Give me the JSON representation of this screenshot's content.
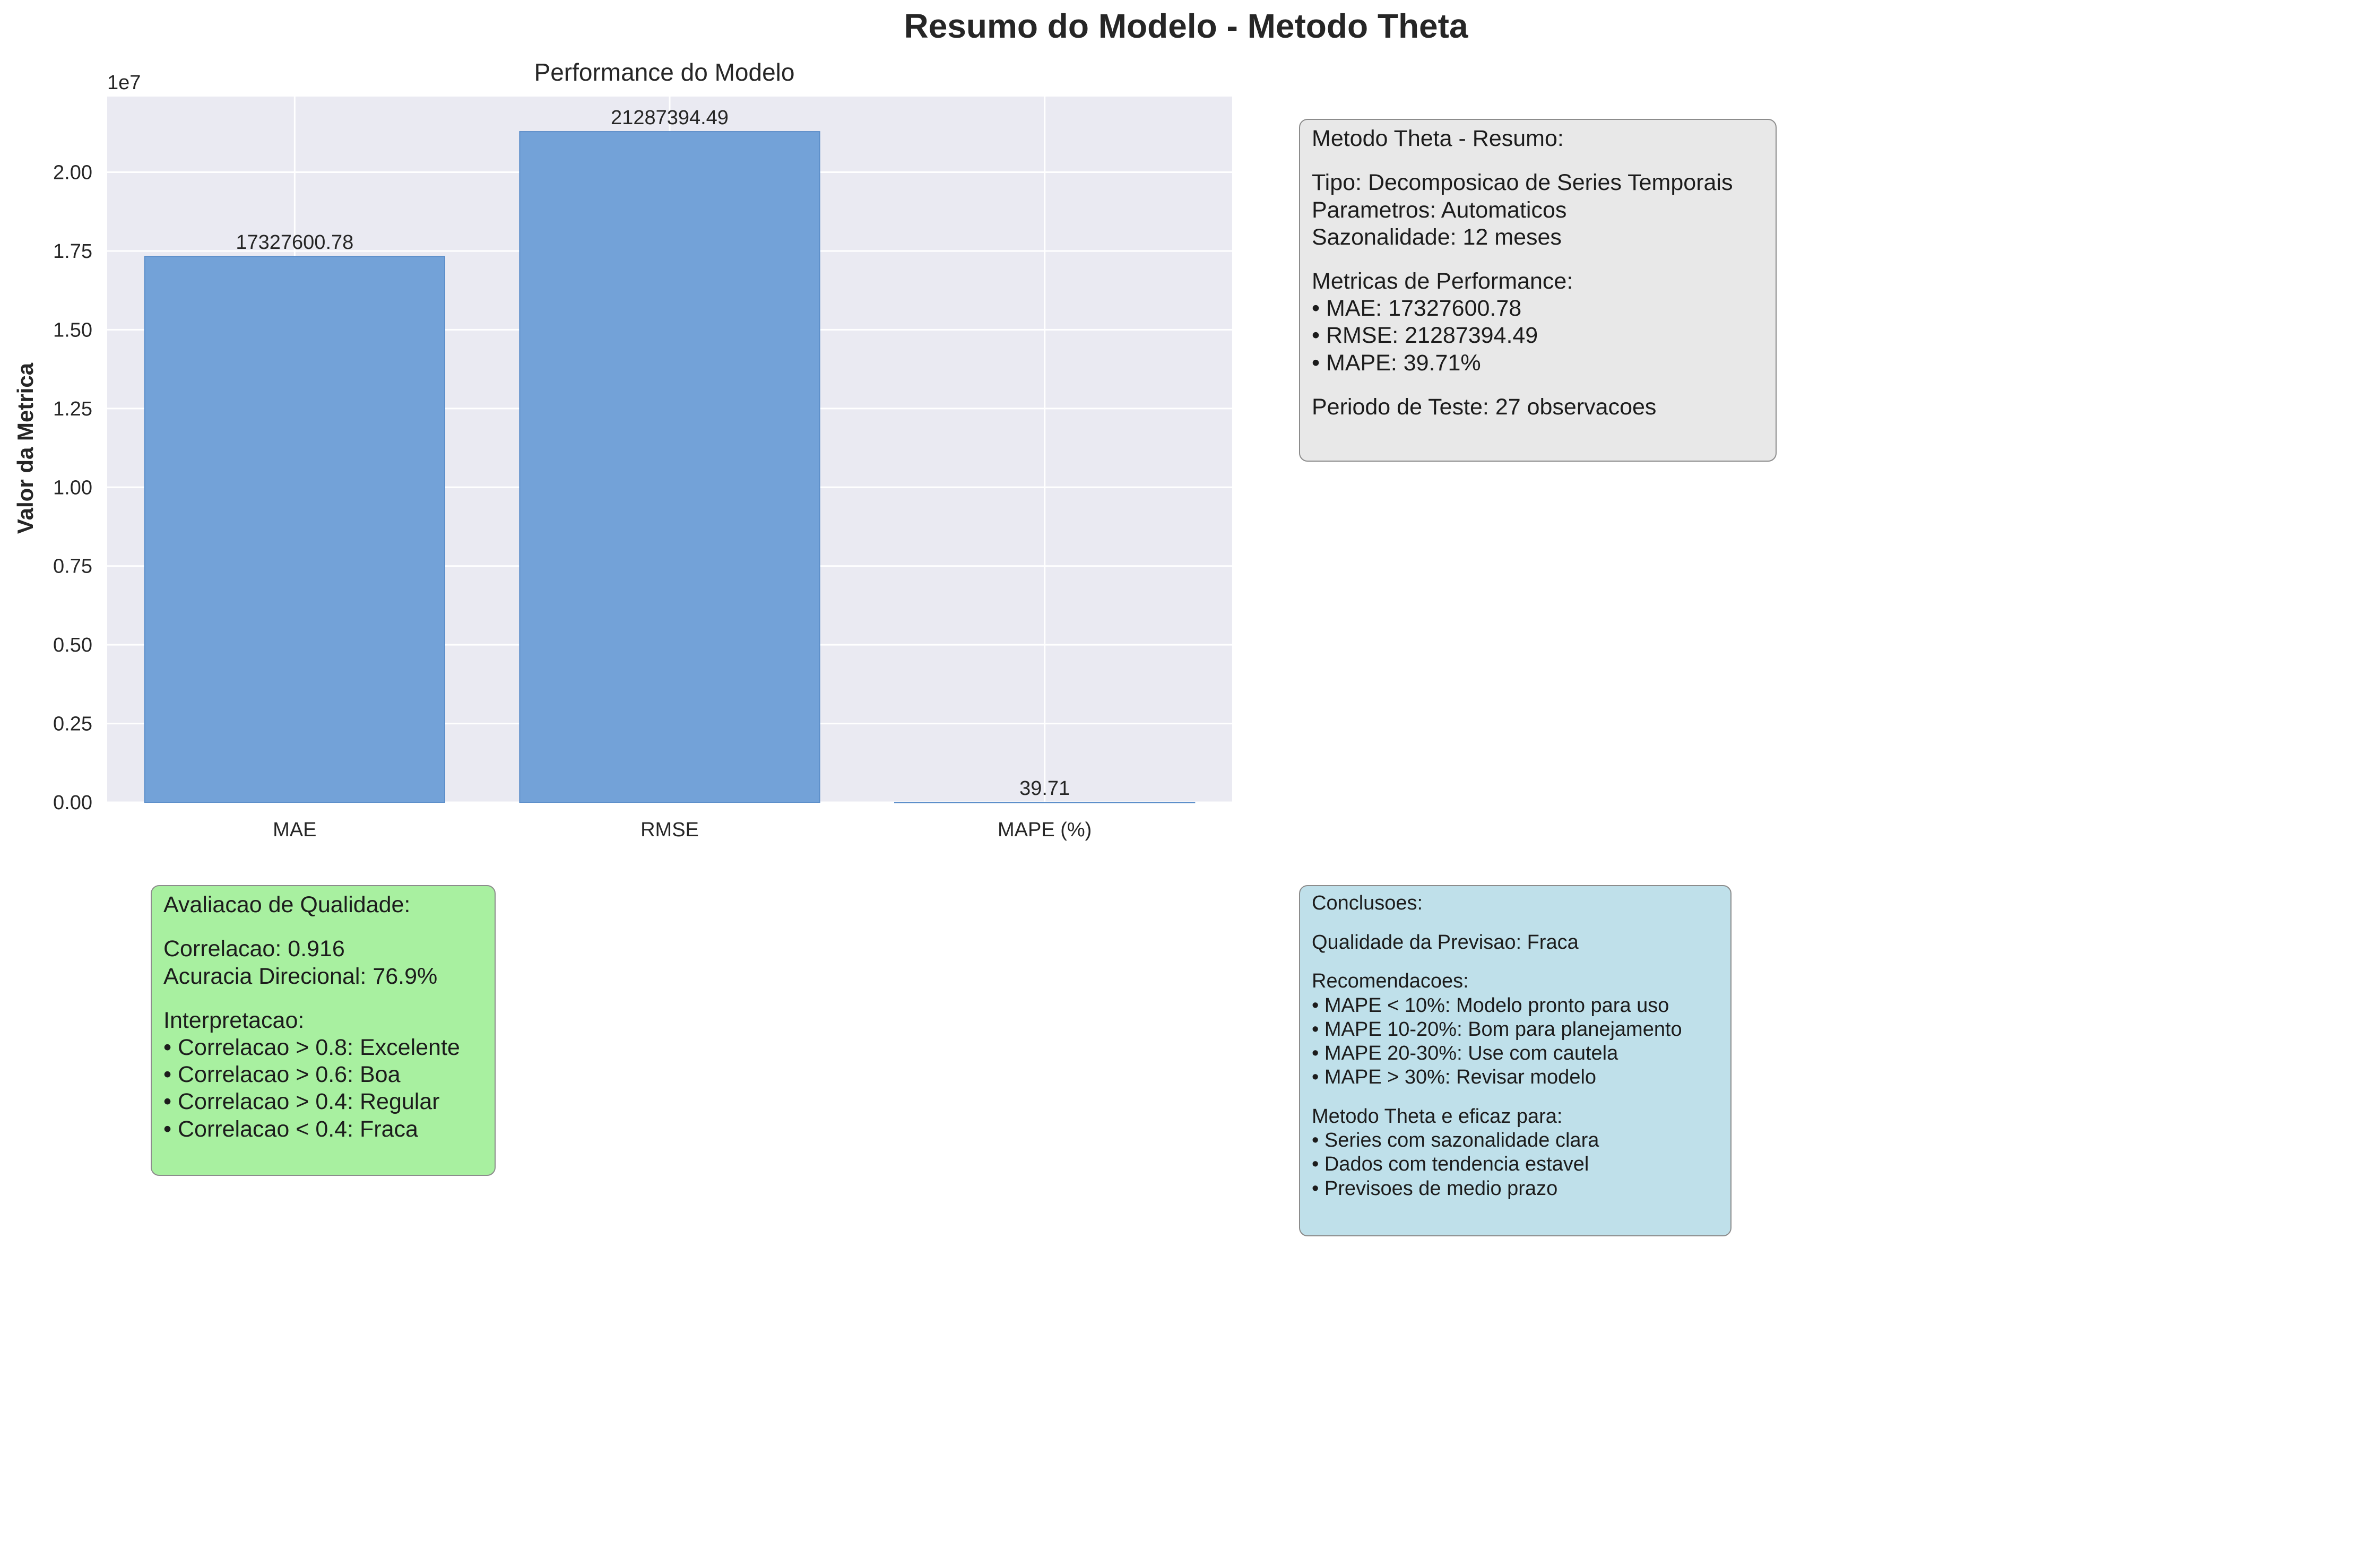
{
  "figure": {
    "title": "Resumo do Modelo - Metodo Theta"
  },
  "chart_data": {
    "type": "bar",
    "title": "Performance do Modelo",
    "xlabel": "",
    "ylabel": "Valor da Metrica",
    "categories": [
      "MAE",
      "RMSE",
      "MAPE (%)"
    ],
    "values": [
      17327600.78,
      21287394.49,
      39.71
    ],
    "data_labels": [
      "17327600.78",
      "21287394.49",
      "39.71"
    ],
    "ylim": [
      0,
      22400000
    ],
    "y_ticks": [
      0,
      2500000,
      5000000,
      7500000,
      10000000,
      12500000,
      15000000,
      17500000,
      20000000
    ],
    "y_tick_labels": [
      "0.00",
      "0.25",
      "0.50",
      "0.75",
      "1.00",
      "1.25",
      "1.50",
      "1.75",
      "2.00"
    ],
    "y_offset_label": "1e7",
    "grid": true,
    "colors": {
      "bar": "#73a2d8",
      "bar_edge": "#5d8fca",
      "plot_background": "#eaeaf2",
      "grid": "#ffffff"
    }
  },
  "summary_box": {
    "lines": [
      "Metodo Theta - Resumo:",
      "",
      "Tipo: Decomposicao de Series Temporais",
      "Parametros: Automaticos",
      "Sazonalidade: 12 meses",
      "",
      "Metricas de Performance:",
      "• MAE: 17327600.78",
      "• RMSE: 21287394.49",
      "• MAPE: 39.71%",
      "",
      "Periodo de Teste: 27 observacoes"
    ],
    "color": "#e8e8e8"
  },
  "quality_box": {
    "lines": [
      "Avaliacao de Qualidade:",
      "",
      "Correlacao: 0.916",
      "Acuracia Direcional: 76.9%",
      "",
      "Interpretacao:",
      "• Correlacao > 0.8: Excelente",
      "• Correlacao > 0.6: Boa",
      "• Correlacao > 0.4: Regular",
      "• Correlacao < 0.4: Fraca"
    ],
    "color": "#a8f0a0"
  },
  "conclusions_box": {
    "lines": [
      "Conclusoes:",
      "",
      "Qualidade da Previsao: Fraca",
      "",
      "Recomendacoes:",
      "• MAPE < 10%: Modelo pronto para uso",
      "• MAPE 10-20%: Bom para planejamento",
      "• MAPE 20-30%: Use com cautela",
      "• MAPE > 30%: Revisar modelo",
      "",
      "Metodo Theta e eficaz para:",
      "• Series com sazonalidade clara",
      "• Dados com tendencia estavel",
      "• Previsoes de medio prazo"
    ],
    "color": "#bfe0ea"
  }
}
